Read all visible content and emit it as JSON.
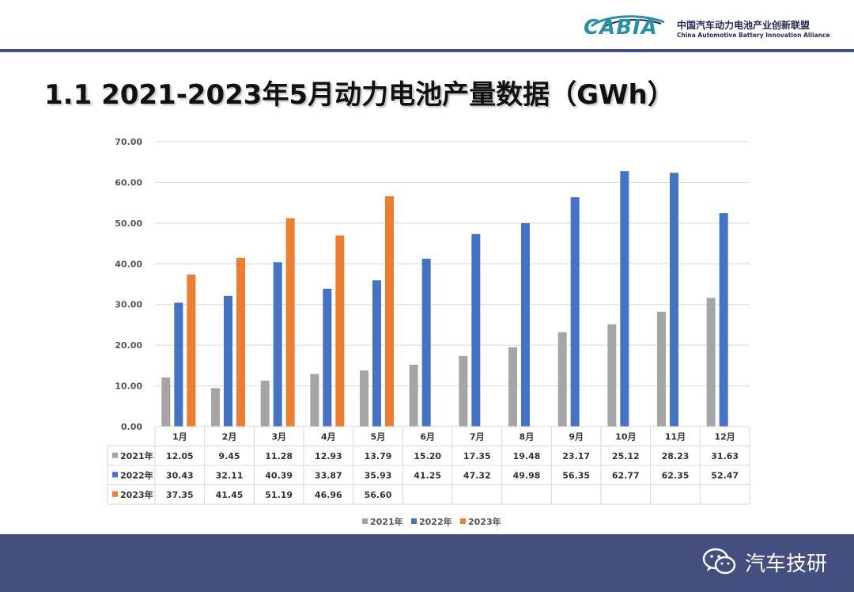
{
  "header": {
    "logo_text": "CABIA",
    "org_cn": "中国汽车动力电池产业创新联盟",
    "org_en": "China Automotive Battery Innovation Alliance"
  },
  "title": "1.1 2021-2023年5月动力电池产量数据（GWh）",
  "footer": {
    "brand": "汽车技研"
  },
  "colors": {
    "2021年": "#a5a5a5",
    "2022年": "#4472c4",
    "2023年": "#ed7d31"
  },
  "chart_data": {
    "type": "bar",
    "categories": [
      "1月",
      "2月",
      "3月",
      "4月",
      "5月",
      "6月",
      "7月",
      "8月",
      "9月",
      "10月",
      "11月",
      "12月"
    ],
    "series": [
      {
        "name": "2021年",
        "values": [
          12.05,
          9.45,
          11.28,
          12.93,
          13.79,
          15.2,
          17.35,
          19.48,
          23.17,
          25.12,
          28.23,
          31.63
        ]
      },
      {
        "name": "2022年",
        "values": [
          30.43,
          32.11,
          40.39,
          33.87,
          35.93,
          41.25,
          47.32,
          49.98,
          56.35,
          62.77,
          62.35,
          52.47
        ]
      },
      {
        "name": "2023年",
        "values": [
          37.35,
          41.45,
          51.19,
          46.96,
          56.6,
          null,
          null,
          null,
          null,
          null,
          null,
          null
        ]
      }
    ],
    "display_values": [
      [
        "12.05",
        "9.45",
        "11.28",
        "12.93",
        "13.79",
        "15.20",
        "17.35",
        "19.48",
        "23.17",
        "25.12",
        "28.23",
        "31.63"
      ],
      [
        "30.43",
        "32.11",
        "40.39",
        "33.87",
        "35.93",
        "41.25",
        "47.32",
        "49.98",
        "56.35",
        "62.77",
        "62.35",
        "52.47"
      ],
      [
        "37.35",
        "41.45",
        "51.19",
        "46.96",
        "56.60",
        "",
        "",
        "",
        "",
        "",
        "",
        ""
      ]
    ],
    "yticks": [
      "0.00",
      "10.00",
      "20.00",
      "30.00",
      "40.00",
      "50.00",
      "60.00",
      "70.00"
    ],
    "ylim": [
      0,
      70
    ],
    "grid": true,
    "legend": "bottom",
    "data_table": true
  }
}
